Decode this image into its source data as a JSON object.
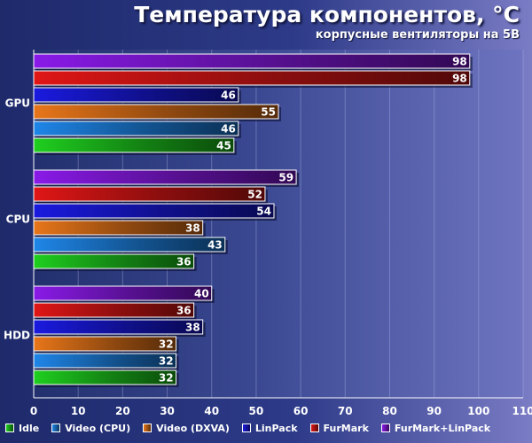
{
  "chart_title": "Температура компонентов, °C",
  "chart_subtitle": "корпусные вентиляторы на 5В",
  "chart_data": {
    "type": "bar",
    "orientation": "horizontal",
    "title": "Температура компонентов, °C",
    "subtitle": "корпусные вентиляторы на 5В",
    "categories": [
      "GPU",
      "CPU",
      "HDD"
    ],
    "series": [
      {
        "name": "Idle",
        "color": "#1fcf1f",
        "values": [
          45,
          36,
          32
        ]
      },
      {
        "name": "Video (CPU)",
        "color": "#1f86e8",
        "values": [
          46,
          43,
          32
        ]
      },
      {
        "name": "Video (DXVA)",
        "color": "#e8761a",
        "values": [
          55,
          38,
          32
        ]
      },
      {
        "name": "LinPack",
        "color": "#1a1ae0",
        "values": [
          46,
          54,
          38
        ]
      },
      {
        "name": "FurMark",
        "color": "#e01616",
        "values": [
          98,
          52,
          36
        ]
      },
      {
        "name": "FurMark+LinPack",
        "color": "#8a1ae8",
        "values": [
          98,
          59,
          40
        ]
      }
    ],
    "xlim": [
      0,
      110
    ],
    "xticks": [
      "0",
      "10",
      "20",
      "30",
      "40",
      "50",
      "60",
      "70",
      "80",
      "90",
      "100",
      "110"
    ],
    "grid": true,
    "legend_position": "bottom",
    "data_labels": true
  }
}
